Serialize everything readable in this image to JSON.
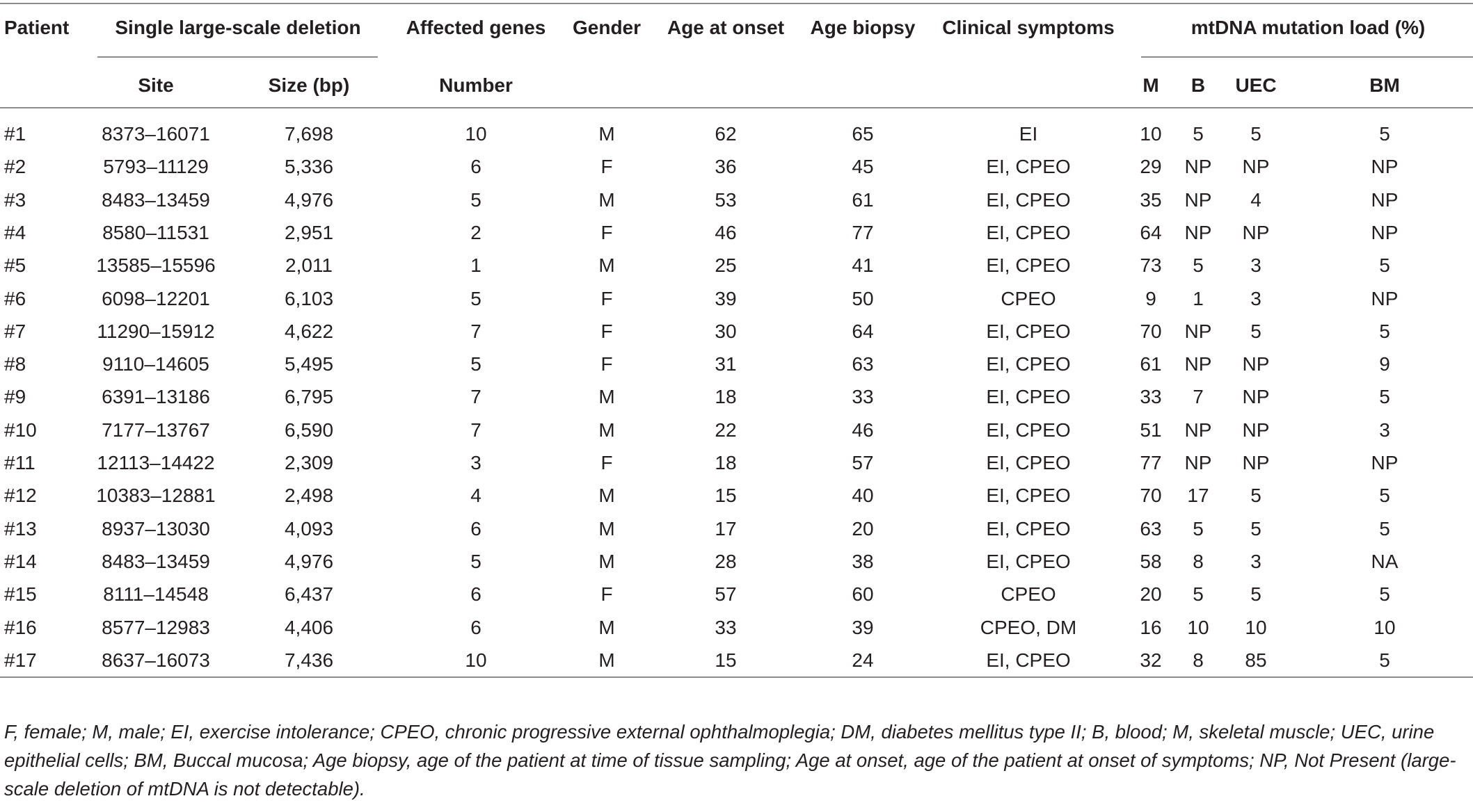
{
  "table": {
    "headers": {
      "patient": "Patient",
      "deletion_group": "Single large-scale deletion",
      "site": "Site",
      "size": "Size (bp)",
      "affected_genes": "Affected genes",
      "number": "Number",
      "gender": "Gender",
      "age_onset": "Age at onset",
      "age_biopsy": "Age biopsy",
      "symptoms": "Clinical symptoms",
      "load_group": "mtDNA mutation load (%)",
      "m": "M",
      "b": "B",
      "uec": "UEC",
      "bm": "BM"
    },
    "rows": [
      [
        "#1",
        "8373–16071",
        "7,698",
        "10",
        "M",
        "62",
        "65",
        "EI",
        "10",
        "5",
        "5",
        "5"
      ],
      [
        "#2",
        "5793–11129",
        "5,336",
        "6",
        "F",
        "36",
        "45",
        "EI, CPEO",
        "29",
        "NP",
        "NP",
        "NP"
      ],
      [
        "#3",
        "8483–13459",
        "4,976",
        "5",
        "M",
        "53",
        "61",
        "EI, CPEO",
        "35",
        "NP",
        "4",
        "NP"
      ],
      [
        "#4",
        "8580–11531",
        "2,951",
        "2",
        "F",
        "46",
        "77",
        "EI, CPEO",
        "64",
        "NP",
        "NP",
        "NP"
      ],
      [
        "#5",
        "13585–15596",
        "2,011",
        "1",
        "M",
        "25",
        "41",
        "EI, CPEO",
        "73",
        "5",
        "3",
        "5"
      ],
      [
        "#6",
        "6098–12201",
        "6,103",
        "5",
        "F",
        "39",
        "50",
        "CPEO",
        "9",
        "1",
        "3",
        "NP"
      ],
      [
        "#7",
        "11290–15912",
        "4,622",
        "7",
        "F",
        "30",
        "64",
        "EI, CPEO",
        "70",
        "NP",
        "5",
        "5"
      ],
      [
        "#8",
        "9110–14605",
        "5,495",
        "5",
        "F",
        "31",
        "63",
        "EI, CPEO",
        "61",
        "NP",
        "NP",
        "9"
      ],
      [
        "#9",
        "6391–13186",
        "6,795",
        "7",
        "M",
        "18",
        "33",
        "EI, CPEO",
        "33",
        "7",
        "NP",
        "5"
      ],
      [
        "#10",
        "7177–13767",
        "6,590",
        "7",
        "M",
        "22",
        "46",
        "EI, CPEO",
        "51",
        "NP",
        "NP",
        "3"
      ],
      [
        "#11",
        "12113–14422",
        "2,309",
        "3",
        "F",
        "18",
        "57",
        "EI, CPEO",
        "77",
        "NP",
        "NP",
        "NP"
      ],
      [
        "#12",
        "10383–12881",
        "2,498",
        "4",
        "M",
        "15",
        "40",
        "EI, CPEO",
        "70",
        "17",
        "5",
        "5"
      ],
      [
        "#13",
        "8937–13030",
        "4,093",
        "6",
        "M",
        "17",
        "20",
        "EI, CPEO",
        "63",
        "5",
        "5",
        "5"
      ],
      [
        "#14",
        "8483–13459",
        "4,976",
        "5",
        "M",
        "28",
        "38",
        "EI, CPEO",
        "58",
        "8",
        "3",
        "NA"
      ],
      [
        "#15",
        "8111–14548",
        "6,437",
        "6",
        "F",
        "57",
        "60",
        "CPEO",
        "20",
        "5",
        "5",
        "5"
      ],
      [
        "#16",
        "8577–12983",
        "4,406",
        "6",
        "M",
        "33",
        "39",
        "CPEO, DM",
        "16",
        "10",
        "10",
        "10"
      ],
      [
        "#17",
        "8637–16073",
        "7,436",
        "10",
        "M",
        "15",
        "24",
        "EI, CPEO",
        "32",
        "8",
        "85",
        "5"
      ]
    ]
  },
  "footnote": "F, female; M, male; EI, exercise intolerance; CPEO, chronic progressive external ophthalmoplegia; DM, diabetes mellitus type II; B, blood; M, skeletal muscle; UEC, urine epithelial cells; BM, Buccal mucosa; Age biopsy, age of the patient at time of tissue sampling; Age at onset, age of the patient at onset of symptoms; NP, Not Present (large-scale deletion of mtDNA is not detectable)."
}
